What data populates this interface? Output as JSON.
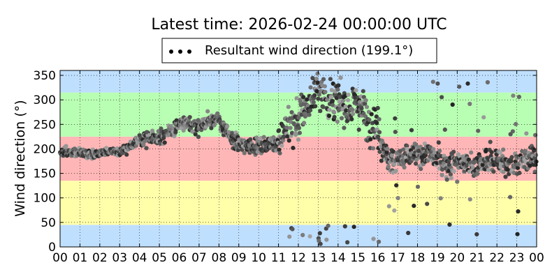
{
  "chart_data": {
    "type": "scatter",
    "title": "Latest time: 2026-02-24 00:00:00 UTC",
    "ylabel": "Wind direction (°)",
    "xlabel": "",
    "xlim": [
      0,
      24
    ],
    "ylim": [
      0,
      360
    ],
    "x_ticks": [
      0,
      1,
      2,
      3,
      4,
      5,
      6,
      7,
      8,
      9,
      10,
      11,
      12,
      13,
      14,
      15,
      16,
      17,
      18,
      19,
      20,
      21,
      22,
      23,
      24
    ],
    "x_tick_labels": [
      "00",
      "01",
      "02",
      "03",
      "04",
      "05",
      "06",
      "07",
      "08",
      "09",
      "10",
      "11",
      "12",
      "13",
      "14",
      "15",
      "16",
      "17",
      "18",
      "19",
      "20",
      "21",
      "22",
      "23",
      "00"
    ],
    "y_ticks": [
      0,
      50,
      100,
      150,
      200,
      250,
      300,
      350
    ],
    "y_tick_labels": [
      "0",
      "50",
      "100",
      "150",
      "200",
      "250",
      "300",
      "350"
    ],
    "grid": true,
    "legend": {
      "placement": "top-center",
      "entries": [
        "Resultant wind direction (199.1°)"
      ]
    },
    "bands": [
      {
        "from": 0,
        "to": 45,
        "color": "#bfdfff"
      },
      {
        "from": 45,
        "to": 135,
        "color": "#ffffaa"
      },
      {
        "from": 135,
        "to": 225,
        "color": "#ffb6b6"
      },
      {
        "from": 225,
        "to": 315,
        "color": "#b9ffb3"
      },
      {
        "from": 315,
        "to": 360,
        "color": "#bfdfff"
      }
    ],
    "series": [
      {
        "name": "Resultant wind direction (199.1°)",
        "trend_points": [
          [
            0.0,
            192
          ],
          [
            0.5,
            195
          ],
          [
            1.0,
            193
          ],
          [
            1.5,
            188
          ],
          [
            2.0,
            192
          ],
          [
            2.5,
            195
          ],
          [
            3.0,
            193
          ],
          [
            3.5,
            205
          ],
          [
            4.0,
            218
          ],
          [
            4.5,
            224
          ],
          [
            5.0,
            225
          ],
          [
            5.5,
            232
          ],
          [
            6.0,
            250
          ],
          [
            6.5,
            252
          ],
          [
            7.0,
            245
          ],
          [
            7.5,
            262
          ],
          [
            8.0,
            258
          ],
          [
            8.5,
            225
          ],
          [
            9.0,
            210
          ],
          [
            9.5,
            205
          ],
          [
            10.0,
            208
          ],
          [
            10.5,
            205
          ],
          [
            11.0,
            218
          ],
          [
            11.5,
            245
          ],
          [
            12.0,
            260
          ],
          [
            12.5,
            295
          ],
          [
            13.0,
            320
          ],
          [
            13.5,
            305
          ],
          [
            14.0,
            292
          ],
          [
            14.5,
            285
          ],
          [
            15.0,
            298
          ],
          [
            15.5,
            258
          ],
          [
            16.0,
            240
          ],
          [
            16.5,
            180
          ],
          [
            17.0,
            175
          ],
          [
            17.5,
            182
          ],
          [
            18.0,
            188
          ],
          [
            18.5,
            190
          ],
          [
            19.0,
            180
          ],
          [
            19.5,
            168
          ],
          [
            20.0,
            175
          ],
          [
            20.5,
            170
          ],
          [
            21.0,
            165
          ],
          [
            21.5,
            178
          ],
          [
            22.0,
            176
          ],
          [
            22.5,
            170
          ],
          [
            23.0,
            172
          ],
          [
            23.5,
            178
          ],
          [
            24.0,
            182
          ]
        ]
      }
    ]
  }
}
